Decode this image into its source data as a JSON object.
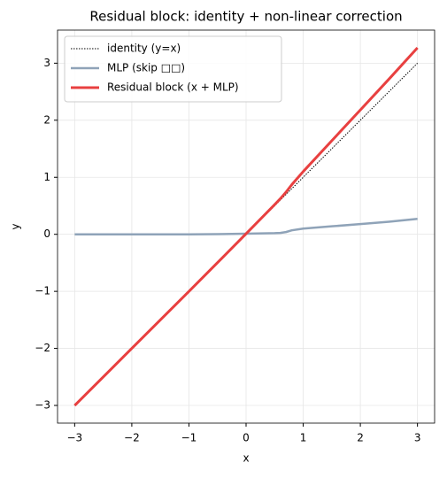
{
  "chart_data": {
    "type": "line",
    "title": "Residual block: identity + non-linear correction",
    "x_label": "x",
    "y_label": "y",
    "x": [
      -3,
      -2,
      -1,
      -0.5,
      0,
      0.5,
      0.6,
      0.7,
      0.8,
      1,
      1.5,
      2,
      2.5,
      3
    ],
    "series": [
      {
        "name": "identity (y=x)",
        "color": "#000000",
        "linestyle": "dotted",
        "linewidth": 1,
        "values": [
          -3,
          -2,
          -1,
          -0.5,
          0,
          0.5,
          0.6,
          0.7,
          0.8,
          1,
          1.5,
          2,
          2.5,
          3
        ]
      },
      {
        "name": "MLP (skip □□)",
        "color": "#8fa3b8",
        "linestyle": "solid",
        "linewidth": 2.5,
        "values": [
          0,
          0,
          0,
          0.003,
          0.01,
          0.02,
          0.025,
          0.04,
          0.07,
          0.1,
          0.14,
          0.18,
          0.22,
          0.27
        ]
      },
      {
        "name": "Residual block (x + MLP)",
        "color": "#e84040",
        "linestyle": "solid",
        "linewidth": 3,
        "values": [
          -3,
          -2,
          -1,
          -0.497,
          0.01,
          0.52,
          0.625,
          0.74,
          0.87,
          1.1,
          1.64,
          2.18,
          2.72,
          3.27
        ]
      }
    ],
    "xlim": [
      -3.3,
      3.3
    ],
    "ylim": [
      -3.31,
      3.58
    ],
    "xticks": [
      {
        "value": -3,
        "label": "−3"
      },
      {
        "value": -2,
        "label": "−2"
      },
      {
        "value": -1,
        "label": "−1"
      },
      0,
      1,
      2,
      3
    ],
    "yticks": [
      {
        "value": -3,
        "label": "−3"
      },
      {
        "value": -2,
        "label": "−2"
      },
      {
        "value": -1,
        "label": "−1"
      },
      0,
      1,
      2,
      3
    ],
    "grid": true,
    "legend": "upper-left"
  }
}
